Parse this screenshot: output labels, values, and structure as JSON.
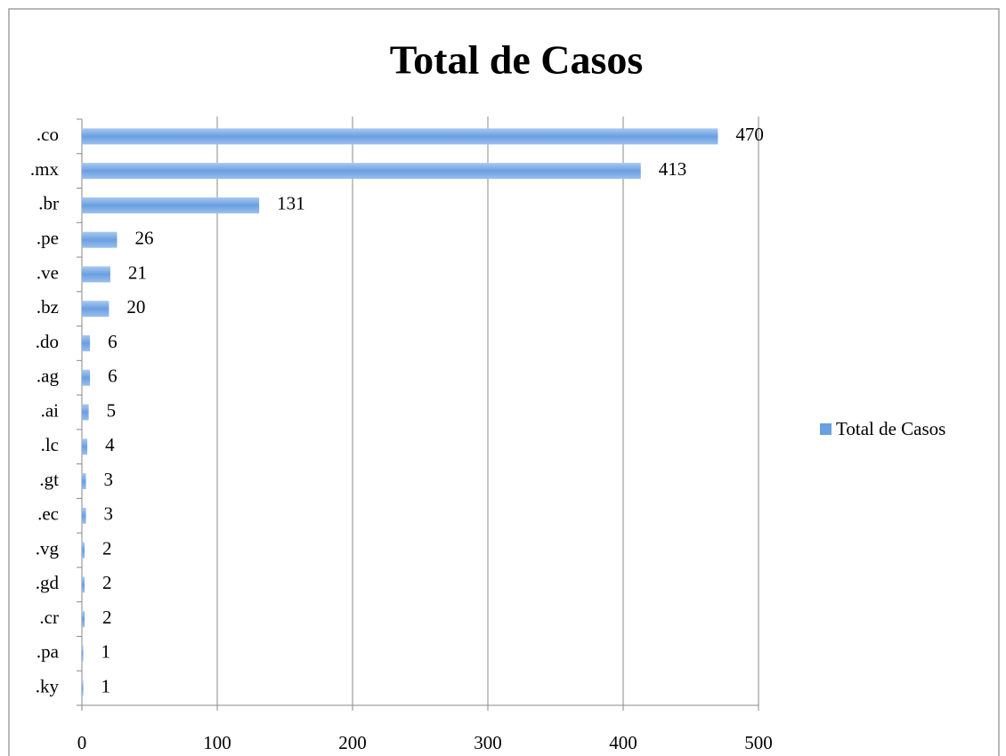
{
  "chart_data": {
    "type": "bar",
    "orientation": "horizontal",
    "title": "Total de Casos",
    "categories": [
      ".co",
      ".mx",
      ".br",
      ".pe",
      ".ve",
      ".bz",
      ".do",
      ".ag",
      ".ai",
      ".lc",
      ".gt",
      ".ec",
      ".vg",
      ".gd",
      ".cr",
      ".pa",
      ".ky"
    ],
    "series": [
      {
        "name": "Total de Casos",
        "color": "#6a9fe0",
        "values": [
          470,
          413,
          131,
          26,
          21,
          20,
          6,
          6,
          5,
          4,
          3,
          3,
          2,
          2,
          2,
          1,
          1
        ]
      }
    ],
    "xlim": [
      0,
      500
    ],
    "xticks": [
      0,
      100,
      200,
      300,
      400,
      500
    ],
    "grid": true,
    "legend": "right"
  }
}
